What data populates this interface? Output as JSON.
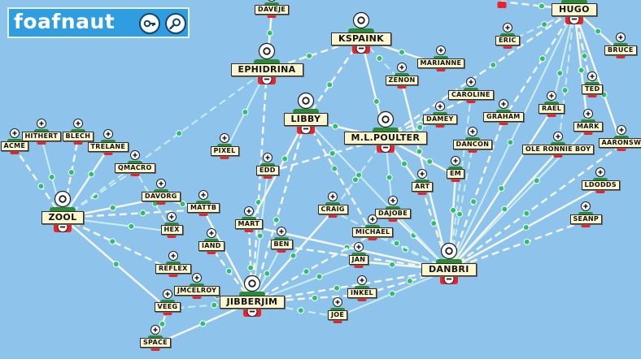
{
  "app": {
    "name": "foafnaut",
    "buttons": [
      {
        "name": "key-button",
        "icon": "key-icon"
      },
      {
        "name": "search-button",
        "icon": "magnifier-icon"
      }
    ]
  },
  "colors": {
    "background": "#8ec3ec",
    "edge": "#f3f7e4",
    "edge_light": "#cdeef0",
    "head": "#ffffff",
    "collar": "#2a8a39",
    "body": "#e8232c",
    "label_bg": "#fdf7cf",
    "dot": "#2fbe6e",
    "logo_bg": "#2f9de0"
  },
  "nodes": [
    {
      "id": "daveje",
      "label": "DAVEJE"
    },
    {
      "id": "kspaink",
      "label": "KSPAINK"
    },
    {
      "id": "ephidrina",
      "label": "EPHIDRINA"
    },
    {
      "id": "hugo",
      "label": "HUGO"
    },
    {
      "id": "eric",
      "label": "ERIC"
    },
    {
      "id": "bruce",
      "label": "BRUCE"
    },
    {
      "id": "marianne",
      "label": "MARIANNE"
    },
    {
      "id": "zenon",
      "label": "ZENON"
    },
    {
      "id": "caroline",
      "label": "CAROLINE"
    },
    {
      "id": "ted",
      "label": "TED"
    },
    {
      "id": "libby",
      "label": "LIBBY"
    },
    {
      "id": "rael",
      "label": "RAEL"
    },
    {
      "id": "graham",
      "label": "GRAHAM"
    },
    {
      "id": "damey",
      "label": "DAMEY"
    },
    {
      "id": "mlpoulter",
      "label": "M.L.POULTER"
    },
    {
      "id": "hithert",
      "label": "HITHERT"
    },
    {
      "id": "blech",
      "label": "BLECH"
    },
    {
      "id": "acme",
      "label": "ACME"
    },
    {
      "id": "trelane",
      "label": "TRELANE"
    },
    {
      "id": "mark",
      "label": "MARK"
    },
    {
      "id": "dancon",
      "label": "DANCON"
    },
    {
      "id": "aaronsw",
      "label": "AARONSW"
    },
    {
      "id": "pixel",
      "label": "PIXEL"
    },
    {
      "id": "oleronnieboy",
      "label": "OLE RONNIE BOY"
    },
    {
      "id": "qmacro",
      "label": "QMACRO"
    },
    {
      "id": "em",
      "label": "EM"
    },
    {
      "id": "edd",
      "label": "EDD"
    },
    {
      "id": "art",
      "label": "ART"
    },
    {
      "id": "ldodds",
      "label": "LDODDS"
    },
    {
      "id": "davorg",
      "label": "DAVORG"
    },
    {
      "id": "mattb",
      "label": "MATTB"
    },
    {
      "id": "craig",
      "label": "CRAIG"
    },
    {
      "id": "dajobe",
      "label": "DAJOBE"
    },
    {
      "id": "zool",
      "label": "ZOOL"
    },
    {
      "id": "seanp",
      "label": "SEANP"
    },
    {
      "id": "hex",
      "label": "HEX"
    },
    {
      "id": "mart",
      "label": "MART"
    },
    {
      "id": "michael",
      "label": "MICHAEL"
    },
    {
      "id": "iand",
      "label": "IAND"
    },
    {
      "id": "ben",
      "label": "BEN"
    },
    {
      "id": "jan",
      "label": "JAN"
    },
    {
      "id": "danbri",
      "label": "DANBRI"
    },
    {
      "id": "reflex",
      "label": "REFLEX"
    },
    {
      "id": "jmcelroy",
      "label": "JMCELROY"
    },
    {
      "id": "inkel",
      "label": "INKEL"
    },
    {
      "id": "jibberjim",
      "label": "JIBBERJIM"
    },
    {
      "id": "veeg",
      "label": "VEEG"
    },
    {
      "id": "joe",
      "label": "JOE"
    },
    {
      "id": "space",
      "label": "SPACE"
    },
    {
      "id": "yr",
      "label": ""
    }
  ]
}
